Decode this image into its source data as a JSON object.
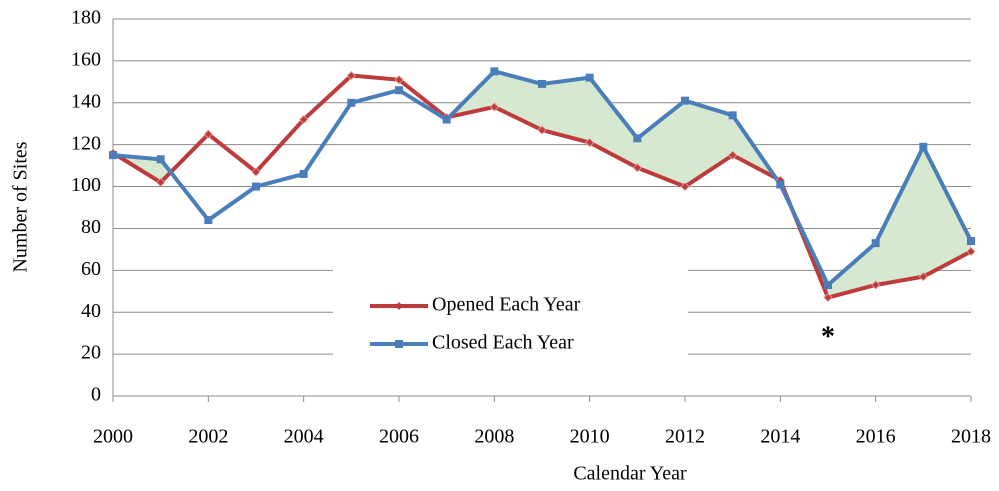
{
  "chart_data": {
    "type": "line",
    "x_label": "Calendar Year",
    "y_label": "Number of Sites",
    "x": [
      2000,
      2001,
      2002,
      2003,
      2004,
      2005,
      2006,
      2007,
      2008,
      2009,
      2010,
      2011,
      2012,
      2013,
      2014,
      2015,
      2016,
      2017,
      2018
    ],
    "series": [
      {
        "name": "Opened Each Year",
        "color": "#be3b3b",
        "marker": "diamond",
        "values": [
          116,
          102,
          125,
          107,
          132,
          153,
          151,
          133,
          138,
          127,
          121,
          109,
          100,
          115,
          103,
          47,
          53,
          57,
          69
        ]
      },
      {
        "name": "Closed Each Year",
        "color": "#4a7ebb",
        "marker": "square",
        "values": [
          115,
          113,
          84,
          100,
          106,
          140,
          146,
          132,
          155,
          149,
          152,
          123,
          141,
          134,
          101,
          53,
          73,
          119,
          74
        ]
      }
    ],
    "fill_between_color": "#d6e8cf",
    "annotations": [
      {
        "text": "*",
        "x": 2015,
        "y": 31
      }
    ],
    "xlim": [
      2000,
      2018
    ],
    "xticks": [
      2000,
      2002,
      2004,
      2006,
      2008,
      2010,
      2012,
      2014,
      2016,
      2018
    ],
    "ylim": [
      0,
      180
    ],
    "yticks": [
      0,
      20,
      40,
      60,
      80,
      100,
      120,
      140,
      160,
      180
    ],
    "grid": true,
    "legend": "center"
  }
}
